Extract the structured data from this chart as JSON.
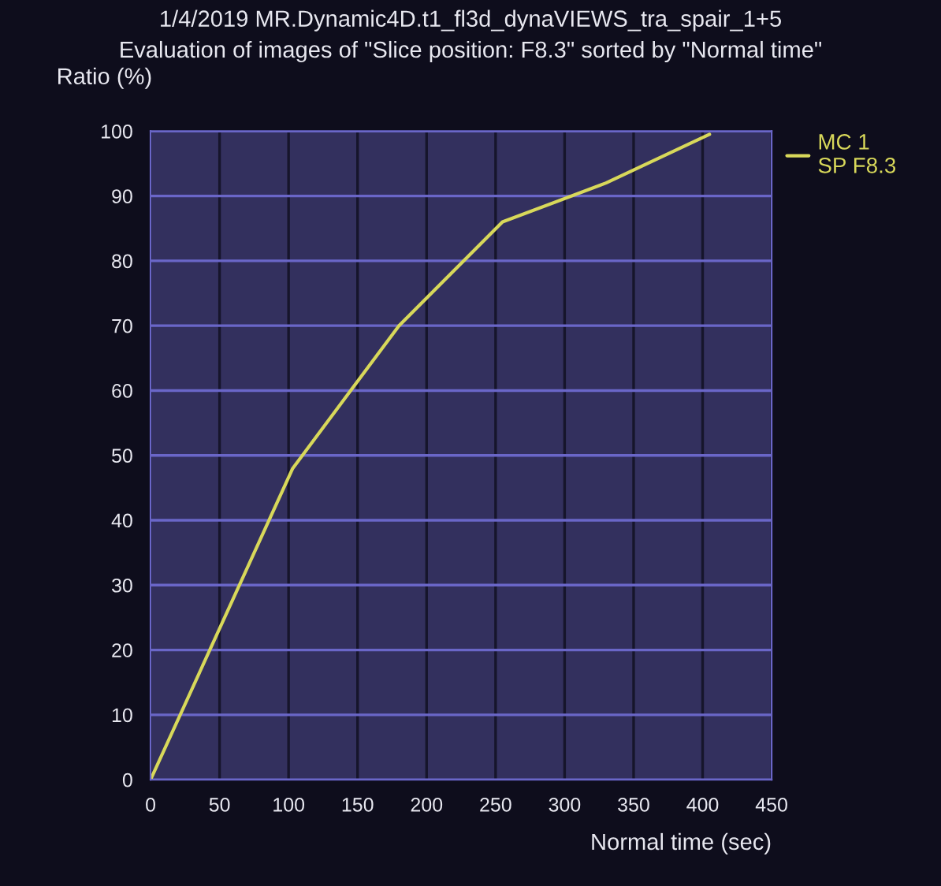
{
  "chart_data": {
    "type": "line",
    "title": "1/4/2019 MR.Dynamic4D.t1_fl3d_dynaVIEWS_tra_spair_1+5",
    "subtitle": "Evaluation of images of \"Slice position: F8.3\" sorted by \"Normal time\"",
    "xlabel": "Normal time (sec)",
    "ylabel": "Ratio (%)",
    "series": [
      {
        "name": "MC 1\nSP F8.3",
        "color": "#d8d85a",
        "x": [
          0,
          103,
          180,
          255,
          330,
          405
        ],
        "values": [
          0,
          48,
          70,
          86,
          92,
          99.5
        ]
      }
    ],
    "xlim": [
      0,
      450
    ],
    "xticks": [
      0,
      50,
      100,
      150,
      200,
      250,
      300,
      350,
      400,
      450
    ],
    "ylim": [
      0,
      100
    ],
    "yticks": [
      0,
      10,
      20,
      30,
      40,
      50,
      60,
      70,
      80,
      90,
      100
    ],
    "grid": true,
    "legend": "top right",
    "marker": "none",
    "line_style": "solid"
  }
}
